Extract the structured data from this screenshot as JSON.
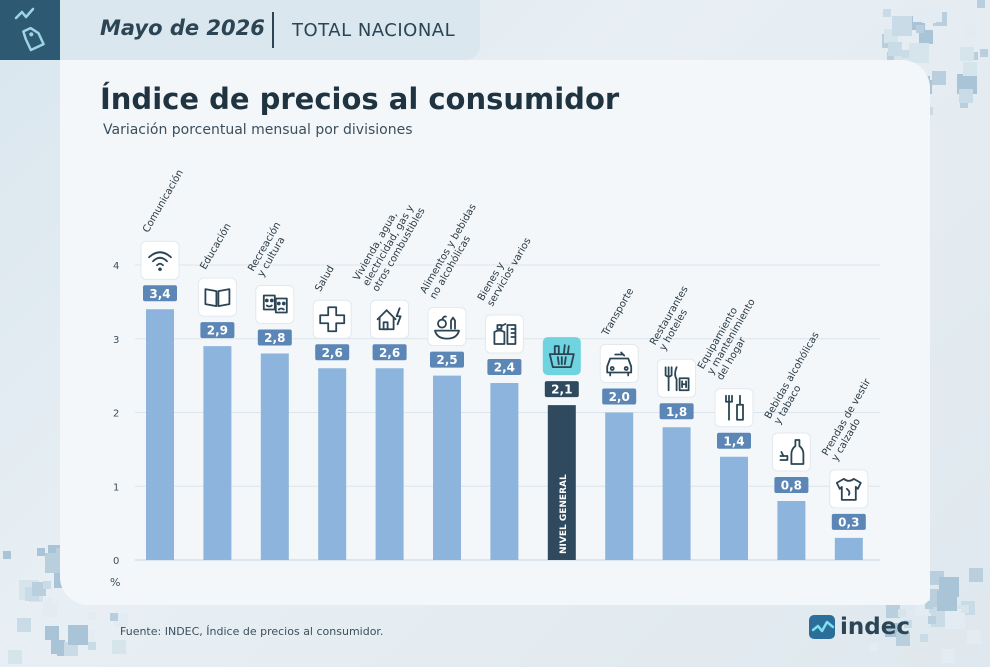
{
  "header": {
    "date": "Mayo de 2026",
    "scope": "TOTAL NACIONAL"
  },
  "footer": {
    "source": "Fuente: INDEC, Índice de precios al consumidor.",
    "logo_text": "indec"
  },
  "colors": {
    "bar": "#8db4dc",
    "highlight_bar": "#2f4a5e",
    "value_box": "#5b86b5",
    "highlight_icon_bg": "#6fd3e0",
    "dark": "#2b4555"
  },
  "chart_data": {
    "type": "bar",
    "title": "Índice de precios al consumidor",
    "subtitle": "Variación porcentual mensual por divisiones",
    "ylabel": "%",
    "ylim": [
      0,
      4
    ],
    "yticks": [
      "0",
      "1",
      "2",
      "3",
      "4"
    ],
    "grid": true,
    "bars": [
      {
        "label_lines": [
          "Comunicación"
        ],
        "value": 3.4,
        "value_label": "3,4",
        "icon": "wifi-icon"
      },
      {
        "label_lines": [
          "Educación"
        ],
        "value": 2.9,
        "value_label": "2,9",
        "icon": "book-icon"
      },
      {
        "label_lines": [
          "Recreación",
          "y cultura"
        ],
        "value": 2.8,
        "value_label": "2,8",
        "icon": "theater-masks-icon"
      },
      {
        "label_lines": [
          "Salud"
        ],
        "value": 2.6,
        "value_label": "2,6",
        "icon": "health-cross-icon"
      },
      {
        "label_lines": [
          "Vivienda, agua,",
          "electricidad, gas y",
          "otros combustibles"
        ],
        "value": 2.6,
        "value_label": "2,6",
        "icon": "house-energy-icon"
      },
      {
        "label_lines": [
          "Alimentos y bebidas",
          "no alcohólicas"
        ],
        "value": 2.5,
        "value_label": "2,5",
        "icon": "food-icon"
      },
      {
        "label_lines": [
          "Bienes y",
          "servicios varios"
        ],
        "value": 2.4,
        "value_label": "2,4",
        "icon": "products-icon"
      },
      {
        "label_lines": [],
        "value": 2.1,
        "value_label": "2,1",
        "icon": "shopping-basket-icon",
        "highlight": true,
        "inner_label": "NIVEL GENERAL"
      },
      {
        "label_lines": [
          "Transporte"
        ],
        "value": 2.0,
        "value_label": "2,0",
        "icon": "car-icon"
      },
      {
        "label_lines": [
          "Restaurantes",
          "y hoteles"
        ],
        "value": 1.8,
        "value_label": "1,8",
        "icon": "restaurant-hotel-icon"
      },
      {
        "label_lines": [
          "Equipamiento",
          "y mantenimiento",
          "del hogar"
        ],
        "value": 1.4,
        "value_label": "1,4",
        "icon": "tools-icon"
      },
      {
        "label_lines": [
          "Bebidas alcohólicas",
          "y tabaco"
        ],
        "value": 0.8,
        "value_label": "0,8",
        "icon": "bottle-icon"
      },
      {
        "label_lines": [
          "Prendas de vestir",
          "y calzado"
        ],
        "value": 0.3,
        "value_label": "0,3",
        "icon": "tshirt-icon"
      }
    ]
  }
}
